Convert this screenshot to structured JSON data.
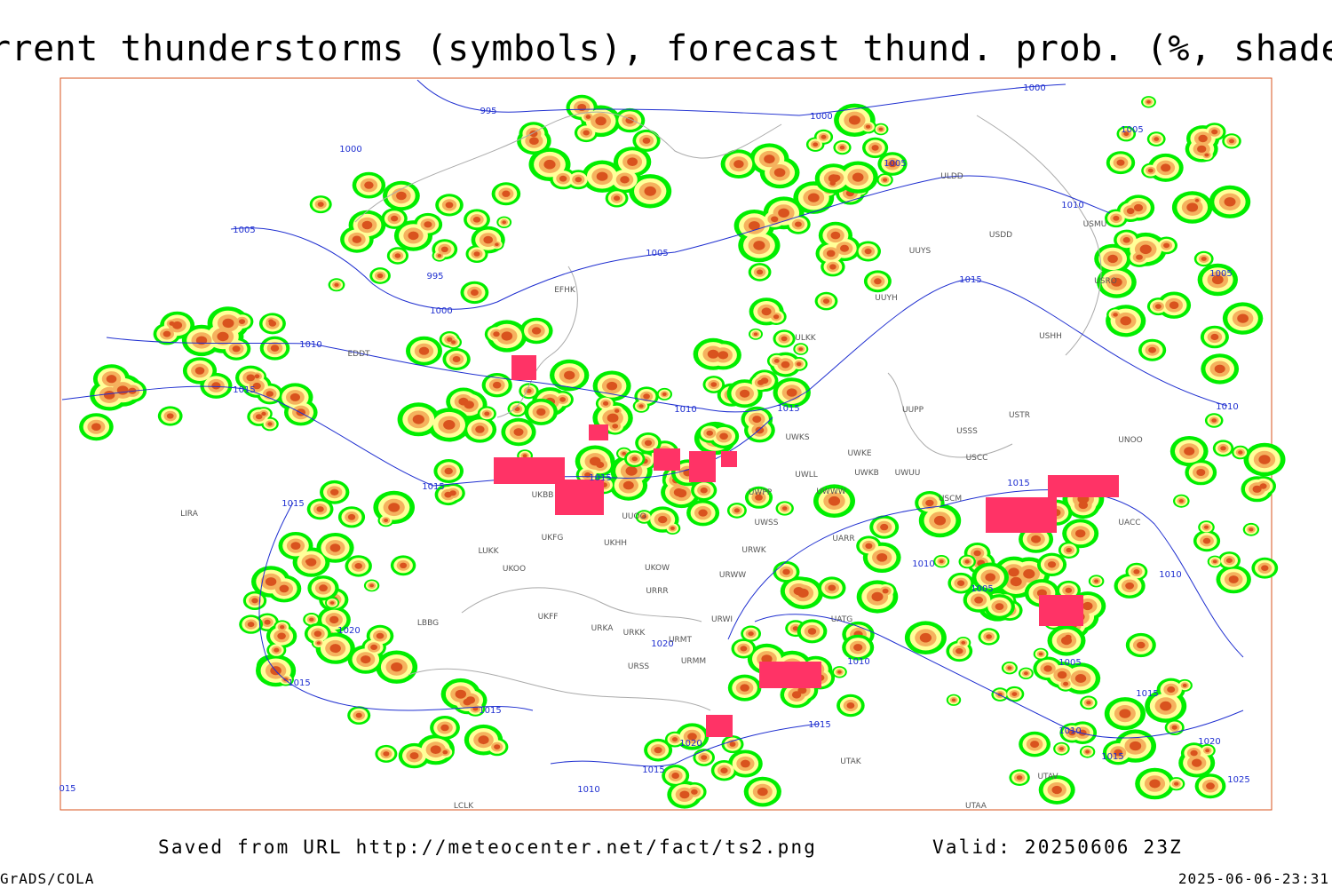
{
  "title": "Current thunderstorms (symbols), forecast thund. prob. (%, shaded)",
  "isobar_labels": [
    "995",
    "1000",
    "1000",
    "1000",
    "1005",
    "1005",
    "1005",
    "1005",
    "1005",
    "995",
    "1000",
    "1010",
    "1010",
    "1015",
    "1010",
    "1015",
    "1015",
    "1010",
    "1015",
    "1015",
    "1015",
    "1015",
    "1010",
    "1010",
    "1005",
    "1005",
    "1020",
    "1020",
    "1010",
    "1015",
    "1015",
    "1015",
    "1015",
    "1010",
    "1020",
    "1015",
    "1010",
    "1015",
    "1020",
    "1025",
    "015"
  ],
  "station_labels": [
    "ULDD",
    "USDD",
    "UUYS",
    "USMU",
    "USRO",
    "UUYH",
    "USHH",
    "ULKK",
    "UWKS",
    "UWKE",
    "UWKB",
    "UWUU",
    "UUPP",
    "USSS",
    "USTR",
    "USCC",
    "UNOO",
    "USCM",
    "UACC",
    "UWPP",
    "UWWW",
    "UWLL",
    "UWSS",
    "URWK",
    "URWW",
    "URWI",
    "UATG",
    "UARR",
    "URRR",
    "UKOW",
    "UKHH",
    "UKFG",
    "LUKK",
    "UKOO",
    "UKFF",
    "URKA",
    "URKK",
    "URMT",
    "URMM",
    "URSS",
    "UTAK",
    "UTAA",
    "UTAV",
    "LBBG",
    "LIRA",
    "LCLK",
    "EFHK",
    "EDDT",
    "UUOO",
    "UKBB"
  ],
  "footer": {
    "source": "Saved from URL http://meteocenter.net/fact/ts2.png",
    "valid": "Valid: 20250606 23Z",
    "software": "GrADS/COLA",
    "timestamp": "2025-06-06-23:31"
  }
}
